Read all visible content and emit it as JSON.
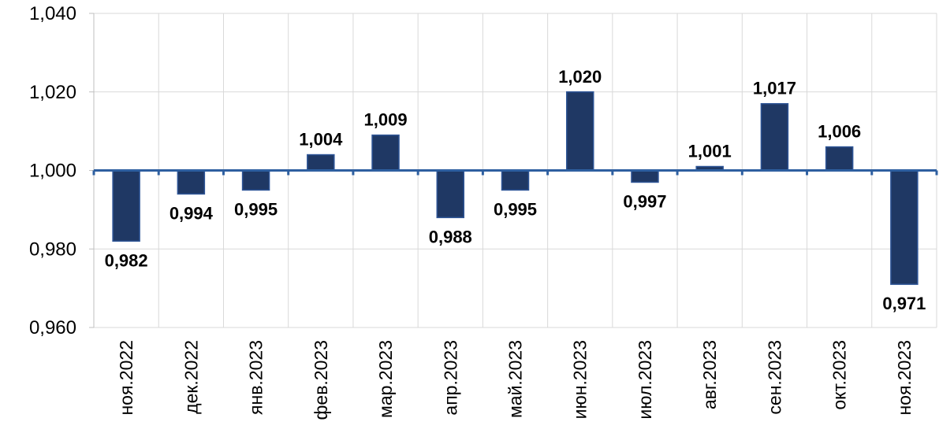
{
  "chart_data": {
    "type": "bar",
    "categories": [
      "ноя.2022",
      "дек.2022",
      "янв.2023",
      "фев.2023",
      "мар.2023",
      "апр.2023",
      "май.2023",
      "июн.2023",
      "июл.2023",
      "авг.2023",
      "сен.2023",
      "окт.2023",
      "ноя.2023"
    ],
    "values": [
      0.982,
      0.994,
      0.995,
      1.004,
      1.009,
      0.988,
      0.995,
      1.02,
      0.997,
      1.001,
      1.017,
      1.006,
      0.971
    ],
    "value_labels": [
      "0,982",
      "0,994",
      "0,995",
      "1,004",
      "1,009",
      "0,988",
      "0,995",
      "1,020",
      "0,997",
      "1,001",
      "1,017",
      "1,006",
      "0,971"
    ],
    "baseline": 1.0,
    "ylim": [
      0.96,
      1.04
    ],
    "yticks": [
      0.96,
      0.98,
      1.0,
      1.02,
      1.04
    ],
    "ytick_labels": [
      "0,960",
      "0,980",
      "1,000",
      "1,020",
      "1,040"
    ],
    "grid": true,
    "title": "",
    "xlabel": "",
    "ylabel": "",
    "colors": {
      "bar_fill": "#1f3864",
      "bar_stroke": "#2e5597",
      "baseline": "#2e5fa0"
    }
  }
}
